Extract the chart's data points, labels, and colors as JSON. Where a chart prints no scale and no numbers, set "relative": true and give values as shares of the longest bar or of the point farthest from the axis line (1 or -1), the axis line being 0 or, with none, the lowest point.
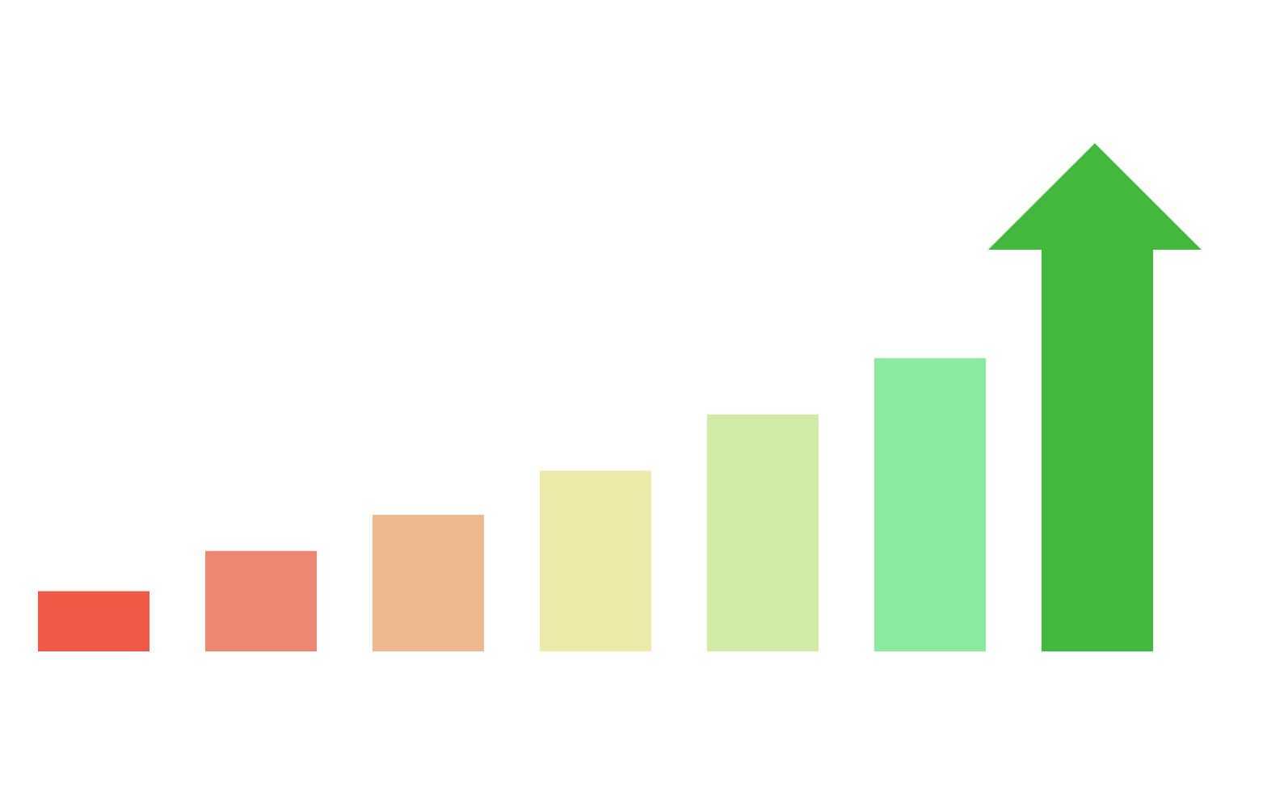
{
  "chart_data": {
    "type": "bar",
    "relative": true,
    "categories": [
      null,
      null,
      null,
      null,
      null,
      null,
      null
    ],
    "values": [
      0.15,
      0.25,
      0.34,
      0.45,
      0.59,
      0.73,
      1.0
    ],
    "colors": [
      "#ee5a45",
      "#ed8672",
      "#eeb98f",
      "#ede9a9",
      "#cfeba6",
      "#8aea9d",
      "#42b83c"
    ]
  }
}
